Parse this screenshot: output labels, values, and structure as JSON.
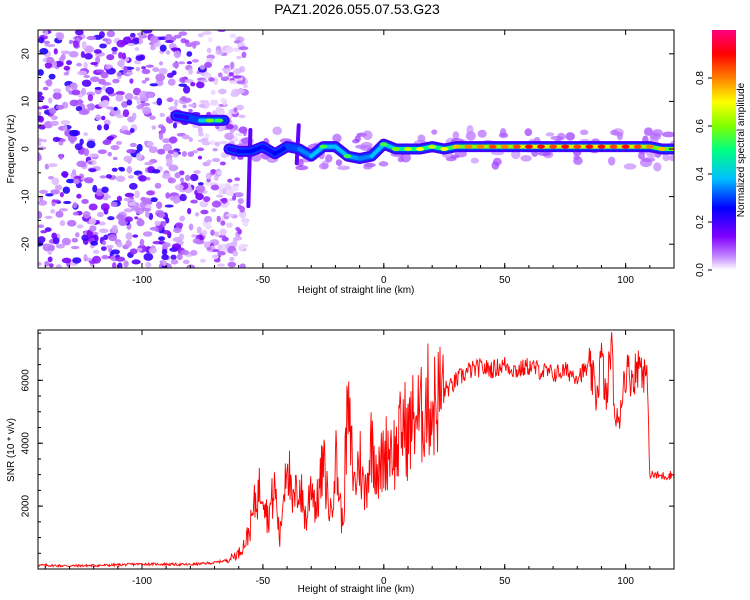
{
  "title": "PAZ1.2026.055.07.53.G23",
  "chart_data": [
    {
      "type": "heatmap",
      "title": "",
      "xlabel": "Height of straight line (km)",
      "ylabel": "Frequency (Hz)",
      "xlim": [
        -143,
        120
      ],
      "ylim": [
        -25,
        25
      ],
      "xticks": [
        -100,
        -50,
        0,
        50,
        100
      ],
      "xtick_labels": [
        "-100",
        "-50",
        "0",
        "50",
        "100"
      ],
      "yticks": [
        -20,
        -10,
        0,
        10,
        20
      ],
      "ytick_labels": [
        "-20",
        "-10",
        "0",
        "10",
        "20"
      ],
      "colorbar": {
        "label": "Normalized spectral amplitude",
        "range": [
          0,
          1
        ],
        "ticks": [
          0.0,
          0.2,
          0.4,
          0.6,
          0.8
        ],
        "tick_labels": [
          "0.0",
          "0.2",
          "0.4",
          "0.6",
          "0.8"
        ],
        "colors": [
          "#ffffff",
          "#c080ff",
          "#8000ff",
          "#0000ff",
          "#00c0ff",
          "#00ff80",
          "#80ff00",
          "#ffff00",
          "#ff8000",
          "#ff0000",
          "#ff0080"
        ]
      },
      "ridge": {
        "x": [
          -86,
          -80,
          -76,
          -72,
          -68,
          -66,
          -64,
          -60,
          -55,
          -50,
          -45,
          -40,
          -35,
          -30,
          -25,
          -20,
          -15,
          -10,
          -5,
          0,
          5,
          10,
          15,
          20,
          25,
          30,
          35,
          40,
          45,
          50,
          55,
          60,
          65,
          70,
          75,
          80,
          85,
          90,
          95,
          100,
          105,
          110,
          115,
          120
        ],
        "frequency": [
          7.0,
          6.5,
          6.0,
          6.0,
          6.0,
          6.0,
          0.0,
          -0.5,
          -0.5,
          0.5,
          -1.0,
          0.5,
          0.0,
          -1.5,
          0.5,
          0.5,
          -1.5,
          -2.0,
          -1.5,
          1.0,
          0.0,
          0.0,
          0.0,
          0.5,
          0.0,
          0.5,
          0.5,
          0.5,
          0.5,
          0.5,
          0.5,
          0.5,
          0.5,
          0.5,
          0.5,
          0.5,
          0.5,
          0.5,
          0.5,
          0.5,
          0.5,
          0.5,
          0.0,
          0.0
        ],
        "amplitude": [
          0.25,
          0.3,
          0.45,
          0.55,
          0.5,
          0.2,
          0.25,
          0.3,
          0.35,
          0.3,
          0.3,
          0.35,
          0.4,
          0.45,
          0.5,
          0.45,
          0.5,
          0.4,
          0.45,
          0.5,
          0.55,
          0.6,
          0.65,
          0.6,
          0.65,
          0.7,
          0.75,
          0.75,
          0.8,
          0.75,
          0.8,
          0.85,
          0.85,
          0.8,
          0.85,
          0.8,
          0.85,
          0.85,
          0.8,
          0.85,
          0.8,
          0.75,
          0.7,
          0.7
        ]
      },
      "noise_region": {
        "x_from": -143,
        "x_to": -65,
        "amplitude": 0.15
      }
    },
    {
      "type": "line",
      "title": "",
      "xlabel": "Height of straight line (km)",
      "ylabel": "SNR (10 * v/v)",
      "xlim": [
        -143,
        120
      ],
      "ylim": [
        0,
        7600
      ],
      "xticks": [
        -100,
        -50,
        0,
        50,
        100
      ],
      "xtick_labels": [
        "-100",
        "-50",
        "0",
        "50",
        "100"
      ],
      "yticks": [
        2000,
        4000,
        6000
      ],
      "ytick_labels": [
        "2000",
        "4000",
        "6000"
      ],
      "line_color": "#ff0000",
      "series": [
        {
          "name": "SNR",
          "x": [
            -143,
            -130,
            -120,
            -110,
            -100,
            -90,
            -80,
            -70,
            -65,
            -60,
            -57,
            -55,
            -53,
            -50,
            -48,
            -45,
            -43,
            -40,
            -38,
            -35,
            -32,
            -30,
            -28,
            -25,
            -22,
            -20,
            -17,
            -15,
            -12,
            -10,
            -8,
            -5,
            -2,
            0,
            3,
            5,
            8,
            10,
            13,
            15,
            18,
            20,
            23,
            25,
            28,
            30,
            35,
            40,
            45,
            50,
            55,
            60,
            65,
            70,
            75,
            80,
            85,
            88,
            90,
            92,
            94,
            96,
            100,
            103,
            106,
            108,
            109,
            110,
            115,
            120
          ],
          "y": [
            120,
            100,
            110,
            130,
            160,
            150,
            140,
            200,
            280,
            500,
            900,
            1400,
            2200,
            2800,
            1600,
            2600,
            900,
            3900,
            1900,
            2700,
            1500,
            2900,
            1900,
            3300,
            1700,
            3600,
            1300,
            5000,
            2600,
            3600,
            2300,
            4100,
            3000,
            3600,
            4000,
            3600,
            4700,
            4200,
            5000,
            4700,
            5400,
            5100,
            5500,
            5700,
            5800,
            6000,
            6300,
            6400,
            6350,
            6500,
            6300,
            6450,
            6300,
            6200,
            6300,
            6150,
            6400,
            5500,
            6800,
            5200,
            7300,
            4300,
            6300,
            6100,
            6600,
            6200,
            5900,
            3000,
            2950,
            3000
          ]
        }
      ]
    }
  ]
}
